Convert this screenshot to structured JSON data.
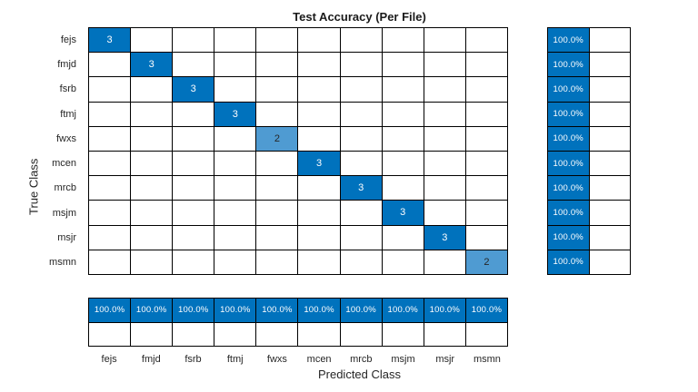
{
  "figure": {
    "title": "Test Accuracy (Per File)",
    "xlabel": "Predicted Class",
    "ylabel": "True Class"
  },
  "colors": {
    "background": "#FFFFFF",
    "cell_full": "#0072BD",
    "cell_partial": "#4F9BD2",
    "cell_empty": "#FFFFFF",
    "grid_line": "#000000",
    "text_on_full": "#FFFFFF",
    "text_on_partial": "#262626",
    "tick_text": "#262626"
  },
  "chart_data": {
    "type": "heatmap",
    "subtype": "confusion-matrix",
    "title": "Test Accuracy (Per File)",
    "xlabel": "Predicted Class",
    "ylabel": "True Class",
    "classes": [
      "fejs",
      "fmjd",
      "fsrb",
      "ftmj",
      "fwxs",
      "mcen",
      "mrcb",
      "msjm",
      "msjr",
      "msmn"
    ],
    "max_count": 3,
    "diagonal_counts": [
      3,
      3,
      3,
      3,
      2,
      3,
      3,
      3,
      3,
      2
    ],
    "off_diagonal_count": 0,
    "row_summary_percent_correct": [
      "100.0%",
      "100.0%",
      "100.0%",
      "100.0%",
      "100.0%",
      "100.0%",
      "100.0%",
      "100.0%",
      "100.0%",
      "100.0%"
    ],
    "row_summary_percent_incorrect": [
      "",
      "",
      "",
      "",
      "",
      "",
      "",
      "",
      "",
      ""
    ],
    "column_summary_percent_correct": [
      "100.0%",
      "100.0%",
      "100.0%",
      "100.0%",
      "100.0%",
      "100.0%",
      "100.0%",
      "100.0%",
      "100.0%",
      "100.0%"
    ],
    "column_summary_percent_incorrect": [
      "",
      "",
      "",
      "",
      "",
      "",
      "",
      "",
      "",
      ""
    ]
  }
}
